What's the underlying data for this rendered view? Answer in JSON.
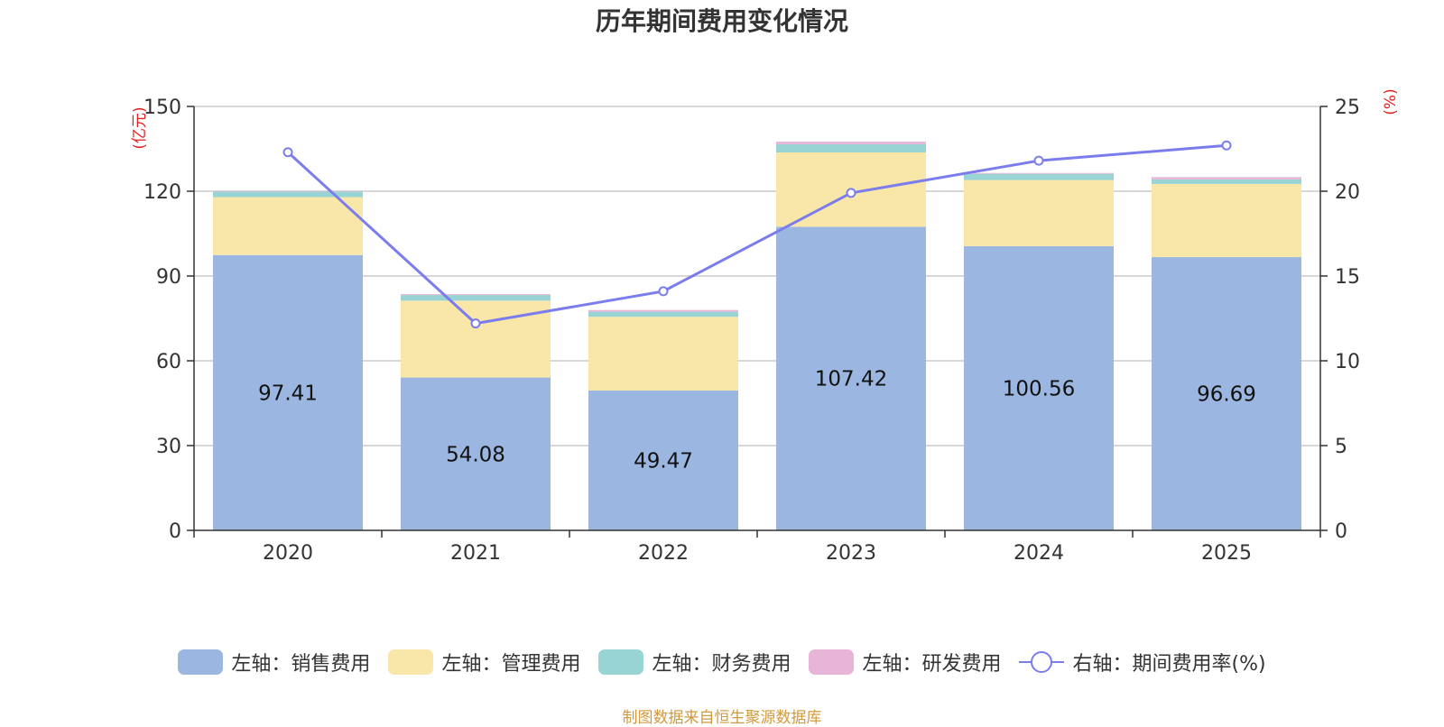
{
  "chart_data": {
    "type": "bar",
    "title": "历年期间费用变化情况",
    "categories": [
      "2020",
      "2021",
      "2022",
      "2023",
      "2024",
      "2025"
    ],
    "y_left": {
      "label": "(亿元)",
      "range": [
        0,
        150
      ],
      "ticks": [
        0,
        30,
        60,
        90,
        120,
        150
      ]
    },
    "y_right": {
      "label": "(%)",
      "range": [
        0,
        25
      ],
      "ticks": [
        0,
        5,
        10,
        15,
        20,
        25
      ]
    },
    "stacked_series": [
      {
        "name": "左轴：销售费用",
        "color": "#9bb7e1",
        "values": [
          97.41,
          54.08,
          49.47,
          107.42,
          100.56,
          96.69
        ],
        "labels": [
          "97.41",
          "54.08",
          "49.47",
          "107.42",
          "100.56",
          "96.69"
        ]
      },
      {
        "name": "左轴：管理费用",
        "color": "#f8e7a8",
        "values": [
          20.5,
          27.2,
          26.1,
          26.3,
          23.4,
          25.9
        ]
      },
      {
        "name": "左轴：财务费用",
        "color": "#98d4d4",
        "values": [
          2.0,
          2.0,
          1.8,
          2.9,
          2.2,
          1.6
        ]
      },
      {
        "name": "左轴：研发费用",
        "color": "#e8b4d7",
        "values": [
          0.2,
          0.3,
          0.6,
          0.9,
          0.3,
          0.8
        ]
      }
    ],
    "line_series": {
      "name": "右轴：期间费用率(%)",
      "color": "#7b7ded",
      "values": [
        22.3,
        12.2,
        14.1,
        19.9,
        21.8,
        22.7
      ]
    },
    "grid": true,
    "legend_position": "bottom"
  },
  "source": "制图数据来自恒生聚源数据库"
}
